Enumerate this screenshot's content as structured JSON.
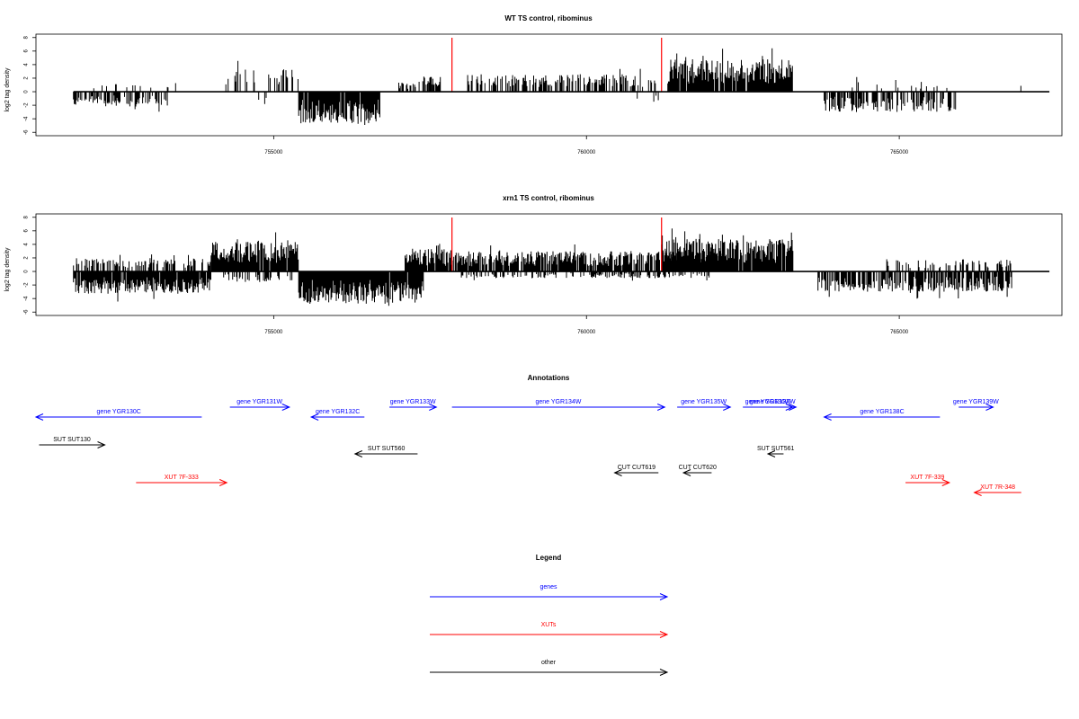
{
  "colors": {
    "gene": "#0000ff",
    "xut": "#ff0000",
    "other": "#000000",
    "marker": "#ff0000",
    "bars": "#000000"
  },
  "chart_data": [
    {
      "type": "bar",
      "title": "WT TS control, ribominus",
      "ylabel": "log2 tag density",
      "xlim": [
        751200,
        767600
      ],
      "ylim": [
        -6.5,
        8.5
      ],
      "xticks": [
        755000,
        760000,
        765000
      ],
      "xtick_labels": [
        "755000",
        "760000",
        "765000"
      ],
      "yticks": [
        -6,
        -4,
        -2,
        0,
        2,
        4,
        6,
        8
      ],
      "ytick_labels": [
        "-6",
        "-4",
        "-2",
        "0",
        "2",
        "4",
        "6",
        "8"
      ],
      "marker_lines": [
        757850,
        761200
      ],
      "segments": [
        {
          "start": 751800,
          "end": 753300,
          "sign": -1,
          "amp": 2.2,
          "density": 0.55,
          "seed": 11
        },
        {
          "start": 752100,
          "end": 753500,
          "sign": 1,
          "amp": 1.3,
          "density": 0.12,
          "seed": 12
        },
        {
          "start": 754200,
          "end": 755400,
          "sign": 1,
          "amp": 3.4,
          "density": 0.22,
          "seed": 13
        },
        {
          "start": 754700,
          "end": 755200,
          "sign": -1,
          "amp": 2.0,
          "density": 0.1,
          "seed": 14
        },
        {
          "start": 755400,
          "end": 756700,
          "sign": -1,
          "amp": 4.6,
          "density": 0.95,
          "seed": 15
        },
        {
          "start": 757000,
          "end": 757600,
          "sign": 1,
          "amp": 1.6,
          "density": 0.45,
          "seed": 16
        },
        {
          "start": 757400,
          "end": 757700,
          "sign": 1,
          "amp": 2.5,
          "density": 0.5,
          "seed": 17
        },
        {
          "start": 758100,
          "end": 761100,
          "sign": 1,
          "amp": 2.6,
          "density": 0.55,
          "seed": 18
        },
        {
          "start": 761300,
          "end": 763300,
          "sign": 1,
          "amp": 4.8,
          "density": 0.9,
          "seed": 19
        },
        {
          "start": 760800,
          "end": 761200,
          "sign": -1,
          "amp": 1.5,
          "density": 0.15,
          "seed": 20
        },
        {
          "start": 763800,
          "end": 765900,
          "sign": -1,
          "amp": 3.0,
          "density": 0.55,
          "seed": 21
        },
        {
          "start": 764200,
          "end": 765800,
          "sign": 1,
          "amp": 1.8,
          "density": 0.12,
          "seed": 22
        },
        {
          "start": 766800,
          "end": 767000,
          "sign": 1,
          "amp": 1.0,
          "density": 0.1,
          "seed": 23
        }
      ]
    },
    {
      "type": "bar",
      "title": "xrn1 TS control, ribominus",
      "ylabel": "log2 tag density",
      "xlim": [
        751200,
        767600
      ],
      "ylim": [
        -6.5,
        8.5
      ],
      "xticks": [
        755000,
        760000,
        765000
      ],
      "xtick_labels": [
        "755000",
        "760000",
        "765000"
      ],
      "yticks": [
        -6,
        -4,
        -2,
        0,
        2,
        4,
        6,
        8
      ],
      "ytick_labels": [
        "-6",
        "-4",
        "-2",
        "0",
        "2",
        "4",
        "6",
        "8"
      ],
      "marker_lines": [
        757850,
        761200
      ],
      "segments": [
        {
          "start": 751800,
          "end": 754000,
          "sign": -1,
          "amp": 3.3,
          "density": 0.95,
          "seed": 31
        },
        {
          "start": 751800,
          "end": 754000,
          "sign": 1,
          "amp": 2.0,
          "density": 0.45,
          "seed": 32
        },
        {
          "start": 754000,
          "end": 755400,
          "sign": 1,
          "amp": 4.6,
          "density": 0.95,
          "seed": 33
        },
        {
          "start": 754200,
          "end": 755300,
          "sign": -1,
          "amp": 1.5,
          "density": 0.4,
          "seed": 34
        },
        {
          "start": 755400,
          "end": 757400,
          "sign": -1,
          "amp": 4.8,
          "density": 0.98,
          "seed": 35
        },
        {
          "start": 757100,
          "end": 758000,
          "sign": 1,
          "amp": 3.3,
          "density": 0.9,
          "seed": 36
        },
        {
          "start": 758000,
          "end": 762200,
          "sign": 1,
          "amp": 3.0,
          "density": 0.85,
          "seed": 37
        },
        {
          "start": 761200,
          "end": 763300,
          "sign": 1,
          "amp": 4.8,
          "density": 0.98,
          "seed": 38
        },
        {
          "start": 758000,
          "end": 762000,
          "sign": -1,
          "amp": 1.0,
          "density": 0.35,
          "seed": 39
        },
        {
          "start": 763700,
          "end": 766800,
          "sign": -1,
          "amp": 3.0,
          "density": 0.75,
          "seed": 40
        },
        {
          "start": 764800,
          "end": 766800,
          "sign": 1,
          "amp": 1.8,
          "density": 0.3,
          "seed": 41
        }
      ]
    }
  ],
  "annotations": {
    "title": "Annotations",
    "features": [
      {
        "label": "gene YGR130C",
        "type": "gene",
        "start": 751200,
        "end": 753850,
        "dir": "left",
        "row": 1
      },
      {
        "label": "gene YGR131W",
        "type": "gene",
        "start": 754300,
        "end": 755250,
        "dir": "right",
        "row": 0
      },
      {
        "label": "gene YGR132C",
        "type": "gene",
        "start": 755600,
        "end": 756450,
        "dir": "left",
        "row": 1
      },
      {
        "label": "gene YGR133W",
        "type": "gene",
        "start": 756850,
        "end": 757600,
        "dir": "right",
        "row": 0
      },
      {
        "label": "gene YGR134W",
        "type": "gene",
        "start": 757850,
        "end": 761250,
        "dir": "right",
        "row": 0
      },
      {
        "label": "gene YGR135W",
        "type": "gene",
        "start": 761450,
        "end": 762300,
        "dir": "right",
        "row": 0
      },
      {
        "label": "gene YGR136W",
        "type": "gene",
        "start": 762500,
        "end": 763300,
        "dir": "right",
        "row": 0
      },
      {
        "label": "gene YGR137W",
        "type": "gene",
        "start": 762600,
        "end": 763350,
        "dir": "right",
        "row": 0
      },
      {
        "label": "gene YGR138C",
        "type": "gene",
        "start": 763800,
        "end": 765650,
        "dir": "left",
        "row": 1
      },
      {
        "label": "gene YGR139W",
        "type": "gene",
        "start": 765950,
        "end": 766500,
        "dir": "right",
        "row": 0
      },
      {
        "label": "SUT SUT130",
        "type": "other",
        "start": 751250,
        "end": 752300,
        "dir": "right",
        "row": 2
      },
      {
        "label": "SUT SUT560",
        "type": "other",
        "start": 756300,
        "end": 757300,
        "dir": "left",
        "row": 3
      },
      {
        "label": "SUT SUT561",
        "type": "other",
        "start": 762900,
        "end": 763150,
        "dir": "left",
        "row": 3
      },
      {
        "label": "CUT CUT619",
        "type": "other",
        "start": 760450,
        "end": 761150,
        "dir": "left",
        "row": 4
      },
      {
        "label": "CUT CUT620",
        "type": "other",
        "start": 761550,
        "end": 762000,
        "dir": "left",
        "row": 4
      },
      {
        "label": "XUT 7F-333",
        "type": "xut",
        "start": 752800,
        "end": 754250,
        "dir": "right",
        "row": 5
      },
      {
        "label": "XUT 7F-339",
        "type": "xut",
        "start": 765100,
        "end": 765800,
        "dir": "right",
        "row": 5
      },
      {
        "label": "XUT 7R-348",
        "type": "xut",
        "start": 766200,
        "end": 766950,
        "dir": "left",
        "row": 6
      }
    ]
  },
  "legend": {
    "title": "Legend",
    "items": [
      {
        "label": "genes",
        "type": "gene"
      },
      {
        "label": "XUTs",
        "type": "xut"
      },
      {
        "label": "other",
        "type": "other"
      }
    ]
  }
}
